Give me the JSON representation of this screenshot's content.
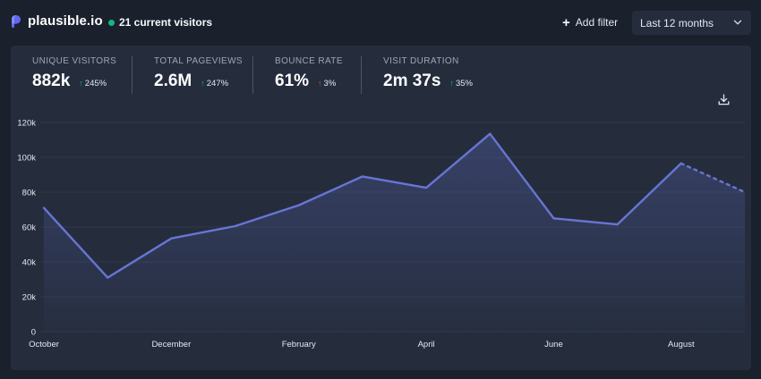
{
  "header": {
    "brand": "plausible.io",
    "visitors": "21 current visitors",
    "add_filter": "Add filter",
    "period": "Last 12 months"
  },
  "stats": [
    {
      "label": "UNIQUE VISITORS",
      "value": "882k",
      "change": "245%",
      "direction": "up",
      "color": "#10b981"
    },
    {
      "label": "TOTAL PAGEVIEWS",
      "value": "2.6M",
      "change": "247%",
      "direction": "up",
      "color": "#10b981"
    },
    {
      "label": "BOUNCE RATE",
      "value": "61%",
      "change": "3%",
      "direction": "up",
      "color": "#ef4444"
    },
    {
      "label": "VISIT DURATION",
      "value": "2m 37s",
      "change": "35%",
      "direction": "up",
      "color": "#10b981"
    }
  ],
  "icons": {
    "download": "download-icon",
    "add": "plus-icon",
    "dropdown": "chevron-down-icon",
    "logo": "plausible-logo-icon"
  },
  "colors": {
    "accent": "#6875d4",
    "background": "#1a202c",
    "card": "#252d3d",
    "positive": "#10b981",
    "negative": "#ef4444"
  },
  "chart_data": {
    "type": "area",
    "x": [
      "October",
      "November",
      "December",
      "January",
      "February",
      "March",
      "April",
      "May",
      "June",
      "July",
      "August",
      "September"
    ],
    "x_tick_labels": [
      "October",
      "December",
      "February",
      "April",
      "June",
      "August"
    ],
    "y_ticks": [
      "0",
      "20k",
      "40k",
      "60k",
      "80k",
      "100k",
      "120k"
    ],
    "ylim": [
      0,
      120000
    ],
    "series": [
      {
        "values": [
          71000,
          31000,
          53500,
          60500,
          72500,
          89000,
          82500,
          113500,
          65000,
          61500,
          96500,
          80000
        ],
        "incomplete_last_segment": true
      }
    ],
    "grid": true,
    "title": "",
    "xlabel": "",
    "ylabel": ""
  }
}
